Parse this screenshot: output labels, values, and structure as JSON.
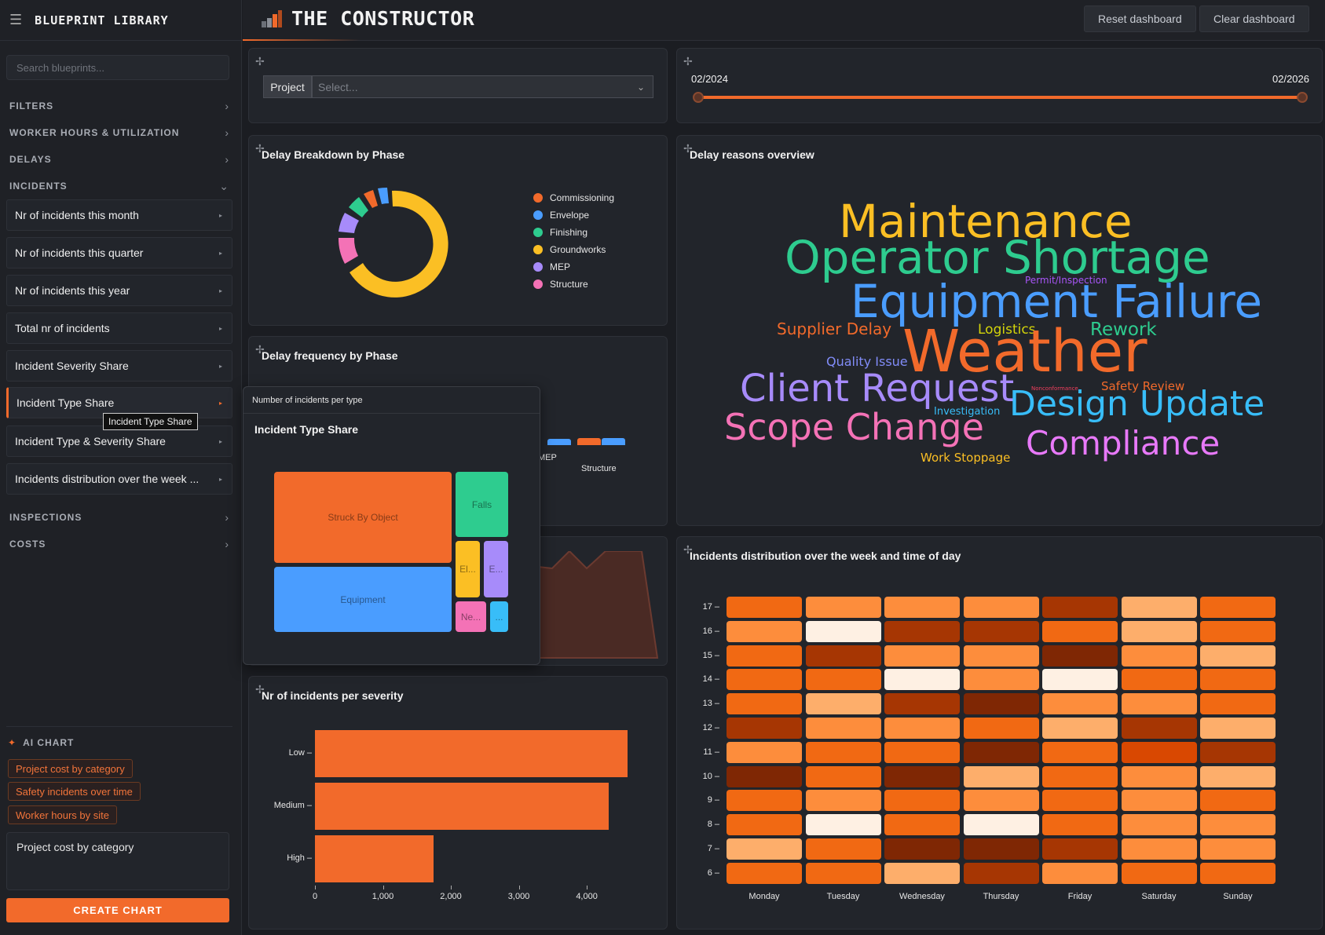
{
  "sidebar": {
    "title": "BLUEPRINT LIBRARY",
    "search_placeholder": "Search blueprints...",
    "sections": {
      "filters": "FILTERS",
      "worker_hours": "WORKER HOURS & UTILIZATION",
      "delays": "DELAYS",
      "incidents": "INCIDENTS",
      "inspections": "INSPECTIONS",
      "costs": "COSTS"
    },
    "incident_items": [
      "Nr of incidents this month",
      "Nr of incidents this quarter",
      "Nr of incidents this year",
      "Total nr of incidents",
      "Incident Severity Share",
      "Incident Type Share",
      "Incident Type & Severity Share",
      "Incidents distribution over the week ..."
    ],
    "tooltip": "Incident Type Share",
    "ai": {
      "title": "AI CHART",
      "suggestions": [
        "Project cost by category",
        "Safety incidents over time",
        "Worker hours by site"
      ],
      "prompt_value": "Project cost by category",
      "create_label": "CREATE CHART"
    }
  },
  "topbar": {
    "title": "THE CONSTRUCTOR",
    "reset_label": "Reset dashboard",
    "clear_label": "Clear dashboard"
  },
  "filters": {
    "project_label": "Project",
    "project_placeholder": "Select...",
    "date_start": "02/2024",
    "date_end": "02/2026"
  },
  "delay_breakdown": {
    "title": "Delay Breakdown by Phase",
    "legend": [
      {
        "name": "Commissioning",
        "color": "#f26a2b"
      },
      {
        "name": "Envelope",
        "color": "#4a9dff"
      },
      {
        "name": "Finishing",
        "color": "#2ecc8f"
      },
      {
        "name": "Groundworks",
        "color": "#fbbf24"
      },
      {
        "name": "MEP",
        "color": "#a78bfa"
      },
      {
        "name": "Structure",
        "color": "#f472b6"
      }
    ]
  },
  "delay_frequency": {
    "title": "Delay frequency by Phase",
    "visible_labels": [
      "MEP",
      "Structure"
    ]
  },
  "popup": {
    "header": "Number of incidents per type",
    "title": "Incident Type Share",
    "tiles": [
      {
        "label": "Struck By Object",
        "color": "#f26a2b"
      },
      {
        "label": "Falls",
        "color": "#2ecc8f"
      },
      {
        "label": "Equipment",
        "color": "#4a9dff"
      },
      {
        "label": "El...",
        "color": "#fbbf24"
      },
      {
        "label": "E...",
        "color": "#a78bfa"
      },
      {
        "label": "Ne...",
        "color": "#f472b6"
      },
      {
        "label": "...",
        "color": "#38bdf8"
      }
    ]
  },
  "wordcloud": {
    "title": "Delay reasons overview",
    "words": [
      {
        "text": "Maintenance",
        "color": "#fbbf24"
      },
      {
        "text": "Operator Shortage",
        "color": "#2ecc8f"
      },
      {
        "text": "Permit/Inspection",
        "color": "#a855f7"
      },
      {
        "text": "Equipment Failure",
        "color": "#4a9dff"
      },
      {
        "text": "Supplier Delay",
        "color": "#f26a2b"
      },
      {
        "text": "Logistics",
        "color": "#d4d40a"
      },
      {
        "text": "Rework",
        "color": "#2ecc8f"
      },
      {
        "text": "Weather",
        "color": "#f26a2b"
      },
      {
        "text": "Quality Issue",
        "color": "#818cf8"
      },
      {
        "text": "Client Request",
        "color": "#a78bfa"
      },
      {
        "text": "Nonconformance",
        "color": "#f43f5e"
      },
      {
        "text": "Safety Review",
        "color": "#f26a2b"
      },
      {
        "text": "Investigation",
        "color": "#38bdf8"
      },
      {
        "text": "Design Update",
        "color": "#38bdf8"
      },
      {
        "text": "Scope Change",
        "color": "#f472b6"
      },
      {
        "text": "Compliance",
        "color": "#e879f9"
      },
      {
        "text": "Work Stoppage",
        "color": "#fbbf24"
      }
    ]
  },
  "severity": {
    "title": "Nr of incidents per severity",
    "chart_data": {
      "type": "bar",
      "orientation": "horizontal",
      "categories": [
        "Low",
        "Medium",
        "High"
      ],
      "values": [
        4600,
        4320,
        1750
      ],
      "xlim": [
        0,
        4800
      ],
      "xticks": [
        "0",
        "1,000",
        "2,000",
        "3,000",
        "4,000"
      ],
      "color": "#f26a2b"
    }
  },
  "heatmap": {
    "title": "Incidents distribution over the week and time of day",
    "chart_data": {
      "type": "heatmap",
      "x": [
        "Monday",
        "Tuesday",
        "Wednesday",
        "Thursday",
        "Friday",
        "Saturday",
        "Sunday"
      ],
      "y": [
        "17",
        "16",
        "15",
        "14",
        "13",
        "12",
        "11",
        "10",
        "9",
        "8",
        "7",
        "6"
      ],
      "values": [
        [
          4,
          3,
          3,
          3,
          6,
          2,
          4
        ],
        [
          3,
          0,
          6,
          6,
          4,
          2,
          4
        ],
        [
          4,
          6,
          3,
          3,
          7,
          3,
          2
        ],
        [
          4,
          4,
          0,
          3,
          0,
          4,
          4
        ],
        [
          4,
          2,
          6,
          7,
          3,
          3,
          4
        ],
        [
          6,
          3,
          3,
          4,
          2,
          6,
          2
        ],
        [
          3,
          4,
          4,
          7,
          4,
          5,
          6
        ],
        [
          9,
          4,
          7,
          2,
          4,
          3,
          2
        ],
        [
          4,
          3,
          4,
          3,
          4,
          3,
          4
        ],
        [
          4,
          0,
          4,
          0,
          4,
          3,
          3
        ],
        [
          2,
          4,
          7,
          9,
          6,
          3,
          3
        ],
        [
          4,
          4,
          2,
          6,
          3,
          4,
          4
        ]
      ],
      "colorscale": [
        "#fef0e3",
        "#fdd0a2",
        "#fdae6b",
        "#fd8d3c",
        "#f16913",
        "#d94801",
        "#a63603",
        "#7f2704"
      ]
    }
  }
}
